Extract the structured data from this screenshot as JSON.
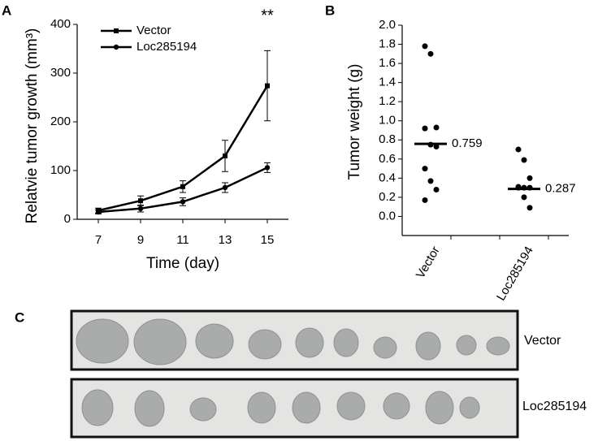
{
  "panel_labels": [
    "A",
    "B",
    "C"
  ],
  "chart_data": [
    {
      "type": "line",
      "annotation": "**",
      "xlabel": "Time (day)",
      "ylabel": "Relatvie tumor growth (mm³)",
      "x": [
        7,
        9,
        11,
        13,
        15
      ],
      "xlim": [
        6,
        16
      ],
      "xticks": [
        7,
        9,
        11,
        13,
        15
      ],
      "ylim": [
        0,
        400
      ],
      "yticks": [
        0,
        100,
        200,
        300,
        400
      ],
      "series": [
        {
          "name": "Vector",
          "color": "#000000",
          "marker": "square",
          "values": [
            18,
            38,
            67,
            130,
            274
          ],
          "errors": [
            5,
            10,
            12,
            32,
            72
          ]
        },
        {
          "name": "Loc285194",
          "color": "#000000",
          "marker": "circle",
          "values": [
            15,
            22,
            36,
            65,
            106
          ],
          "errors": [
            4,
            7,
            8,
            10,
            10
          ]
        }
      ]
    },
    {
      "type": "strip",
      "ylabel": "Tumor weight (g)",
      "categories": [
        "Vector",
        "Loc285194"
      ],
      "values": [
        [
          1.78,
          1.7,
          0.93,
          0.92,
          0.75,
          0.73,
          0.5,
          0.37,
          0.28,
          0.17
        ],
        [
          0.7,
          0.59,
          0.4,
          0.31,
          0.3,
          0.3,
          0.3,
          0.2,
          0.09
        ]
      ],
      "median": [
        0.759,
        0.287
      ],
      "color": "#000000",
      "ylim": [
        -0.2,
        2.0
      ],
      "yticks": [
        {
          "value": 0,
          "label": "0.0"
        },
        {
          "value": 0.2,
          "label": "0.2"
        },
        {
          "value": 0.4,
          "label": "0.4"
        },
        {
          "value": 0.6,
          "label": "0.6"
        },
        {
          "value": 0.8,
          "label": "0.8"
        },
        {
          "value": 1,
          "label": "1.0"
        },
        {
          "value": 1.2,
          "label": "1.2"
        },
        {
          "value": 1.4,
          "label": "1.4"
        },
        {
          "value": 1.6,
          "label": "1.6"
        },
        {
          "value": 1.8,
          "label": "1.8"
        },
        {
          "value": 2,
          "label": "2.0"
        }
      ]
    }
  ],
  "photo_panel": {
    "rows": [
      "Vector",
      "Loc285194"
    ]
  }
}
